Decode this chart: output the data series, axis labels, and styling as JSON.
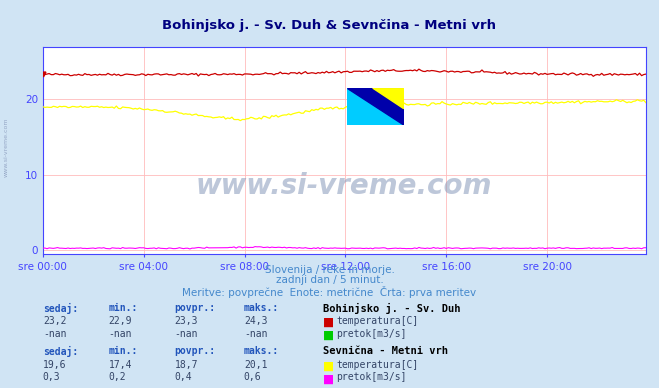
{
  "title": "Bohinjsko j. - Sv. Duh & Sevnčina - Metni vrh",
  "background_color": "#d0e4f4",
  "plot_bg_color": "#ffffff",
  "grid_color": "#ffbbbb",
  "grid_color_minor": "#ffe0e0",
  "x_labels": [
    "sre 00:00",
    "sre 04:00",
    "sre 08:00",
    "sre 12:00",
    "sre 16:00",
    "sre 20:00"
  ],
  "y_ticks": [
    0,
    10,
    20
  ],
  "y_min": -0.5,
  "y_max": 27,
  "subtitle1": "Slovenija / reke in morje.",
  "subtitle2": "zadnji dan / 5 minut.",
  "subtitle3": "Meritve: povprečne  Enote: metrične  Črta: prva meritev",
  "watermark": "www.si-vreme.com",
  "station1_name": "Bohinjsko j. - Sv. Duh",
  "station2_name": "Sevnična - Metni vrh",
  "col_headers": [
    "sedaj:",
    "min.:",
    "povpr.:",
    "maks.:"
  ],
  "station1_row1": [
    "23,2",
    "22,9",
    "23,3",
    "24,3"
  ],
  "station1_row2": [
    "-nan",
    "-nan",
    "-nan",
    "-nan"
  ],
  "station1_labels": [
    "temperatura[C]",
    "pretok[m3/s]"
  ],
  "station1_colors": [
    "#cc0000",
    "#00cc00"
  ],
  "station2_row1": [
    "19,6",
    "17,4",
    "18,7",
    "20,1"
  ],
  "station2_row2": [
    "0,3",
    "0,2",
    "0,4",
    "0,6"
  ],
  "station2_labels": [
    "temperatura[C]",
    "pretok[m3/s]"
  ],
  "station2_colors": [
    "#ffff00",
    "#ff00ff"
  ],
  "line_color_red": "#cc0000",
  "line_color_yellow": "#ffff00",
  "line_color_magenta": "#ff00ff",
  "axis_color": "#4444ff",
  "text_color": "#4488cc",
  "title_color": "#000080",
  "table_header_color": "#2255bb",
  "table_value_color": "#334466",
  "station_name_color": "#000000"
}
